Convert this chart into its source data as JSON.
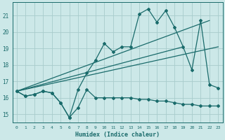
{
  "xlabel": "Humidex (Indice chaleur)",
  "bg_color": "#cce8e8",
  "line_color": "#1a6b6b",
  "grid_color": "#a8cccc",
  "xlim": [
    -0.5,
    23.5
  ],
  "ylim": [
    14.5,
    21.8
  ],
  "yticks": [
    15,
    16,
    17,
    18,
    19,
    20,
    21
  ],
  "xticks": [
    0,
    1,
    2,
    3,
    4,
    5,
    6,
    7,
    8,
    9,
    10,
    11,
    12,
    13,
    14,
    15,
    16,
    17,
    18,
    19,
    20,
    21,
    22,
    23
  ],
  "series_flat_x": [
    0,
    1,
    2,
    3,
    4,
    5,
    6,
    7,
    8,
    9,
    10,
    11,
    12,
    13,
    14,
    15,
    16,
    17,
    18,
    19,
    20,
    21,
    22,
    23
  ],
  "series_flat_y": [
    16.4,
    16.1,
    16.2,
    16.4,
    16.3,
    15.7,
    14.8,
    15.4,
    16.5,
    16.0,
    16.0,
    16.0,
    16.0,
    16.0,
    15.9,
    15.9,
    15.8,
    15.8,
    15.7,
    15.6,
    15.6,
    15.5,
    15.5,
    15.5
  ],
  "series_main_x": [
    0,
    1,
    2,
    3,
    4,
    5,
    6,
    7,
    8,
    9,
    10,
    11,
    12,
    13,
    14,
    15,
    16,
    17,
    18,
    19,
    20,
    21,
    22,
    23
  ],
  "series_main_y": [
    16.4,
    16.1,
    16.2,
    16.4,
    16.3,
    15.7,
    14.8,
    16.5,
    17.5,
    18.3,
    19.3,
    18.8,
    19.1,
    19.1,
    21.1,
    21.4,
    20.6,
    21.3,
    20.3,
    19.1,
    17.7,
    20.7,
    16.8,
    16.6
  ],
  "trend1_x": [
    0,
    22
  ],
  "trend1_y": [
    16.4,
    20.7
  ],
  "trend2_x": [
    0,
    23
  ],
  "trend2_y": [
    16.4,
    19.1
  ],
  "trend3_x": [
    0,
    19
  ],
  "trend3_y": [
    16.4,
    19.1
  ]
}
